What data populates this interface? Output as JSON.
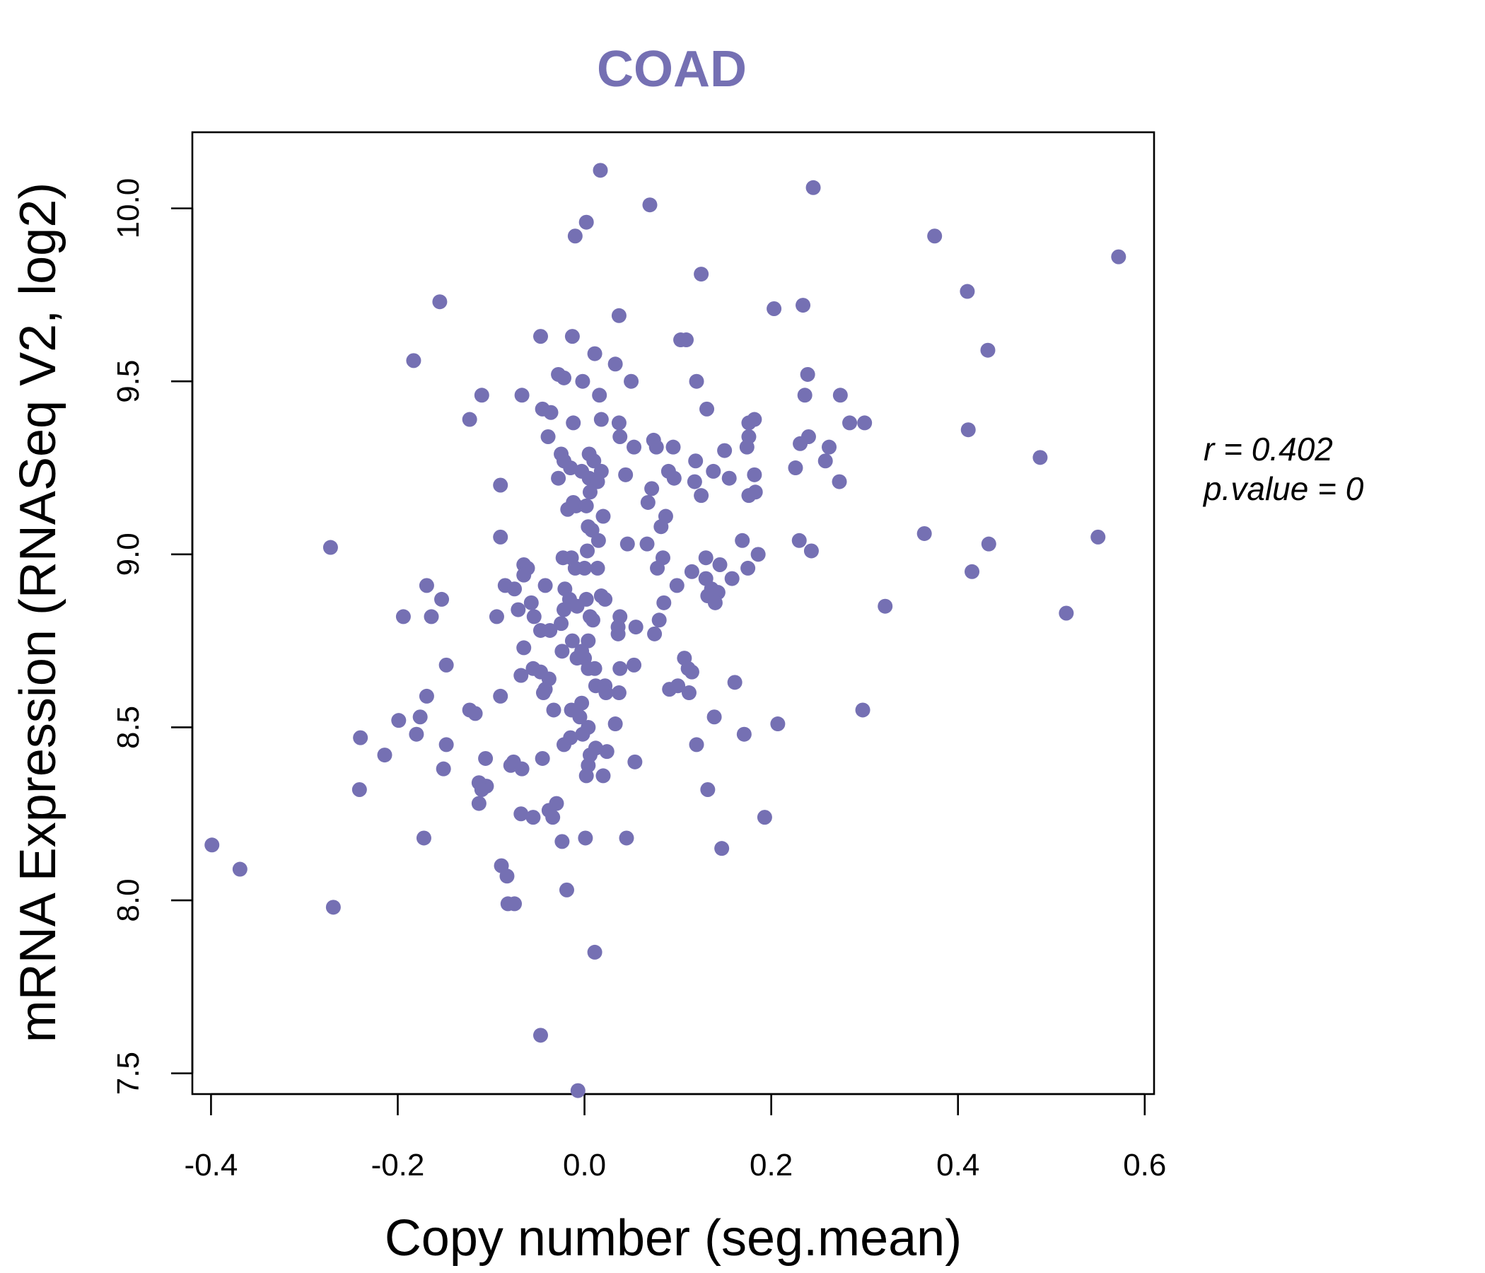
{
  "chart_data": {
    "type": "scatter",
    "title": "COAD",
    "xlabel": "Copy number (seg.mean)",
    "ylabel": "mRNA Expression (RNASeq V2, log2)",
    "xlim": [
      -0.42,
      0.61
    ],
    "ylim": [
      7.44,
      10.22
    ],
    "x_ticks": [
      -0.4,
      -0.2,
      0.0,
      0.2,
      0.4,
      0.6
    ],
    "x_tick_labels": [
      "-0.4",
      "-0.2",
      "0.0",
      "0.2",
      "0.4",
      "0.6"
    ],
    "y_ticks": [
      7.5,
      8.0,
      8.5,
      9.0,
      9.5,
      10.0
    ],
    "y_tick_labels": [
      "7.5",
      "8.0",
      "8.5",
      "9.0",
      "9.5",
      "10.0"
    ],
    "grid": false,
    "point_color": "#7570b3",
    "annotation": {
      "r_label": "r = 0.402",
      "p_label": "p.value = 0"
    },
    "points": [
      [
        0.017,
        10.11
      ],
      [
        0.07,
        10.01
      ],
      [
        0.245,
        10.06
      ],
      [
        0.002,
        9.96
      ],
      [
        -0.01,
        9.92
      ],
      [
        0.375,
        9.92
      ],
      [
        0.572,
        9.86
      ],
      [
        0.125,
        9.81
      ],
      [
        0.41,
        9.76
      ],
      [
        -0.155,
        9.73
      ],
      [
        0.234,
        9.72
      ],
      [
        0.203,
        9.71
      ],
      [
        0.037,
        9.69
      ],
      [
        -0.047,
        9.63
      ],
      [
        -0.013,
        9.63
      ],
      [
        0.103,
        9.62
      ],
      [
        0.109,
        9.62
      ],
      [
        0.432,
        9.59
      ],
      [
        -0.183,
        9.56
      ],
      [
        0.011,
        9.58
      ],
      [
        0.033,
        9.55
      ],
      [
        -0.028,
        9.52
      ],
      [
        -0.022,
        9.51
      ],
      [
        -0.002,
        9.5
      ],
      [
        0.05,
        9.5
      ],
      [
        0.12,
        9.5
      ],
      [
        0.239,
        9.52
      ],
      [
        -0.11,
        9.46
      ],
      [
        -0.067,
        9.46
      ],
      [
        0.016,
        9.46
      ],
      [
        0.236,
        9.46
      ],
      [
        0.274,
        9.46
      ],
      [
        -0.045,
        9.42
      ],
      [
        -0.036,
        9.41
      ],
      [
        0.131,
        9.42
      ],
      [
        -0.123,
        9.39
      ],
      [
        -0.012,
        9.38
      ],
      [
        0.018,
        9.39
      ],
      [
        0.037,
        9.38
      ],
      [
        0.176,
        9.38
      ],
      [
        0.182,
        9.39
      ],
      [
        0.284,
        9.38
      ],
      [
        0.3,
        9.38
      ],
      [
        0.411,
        9.36
      ],
      [
        -0.039,
        9.34
      ],
      [
        0.038,
        9.34
      ],
      [
        0.176,
        9.34
      ],
      [
        0.24,
        9.34
      ],
      [
        0.074,
        9.33
      ],
      [
        0.231,
        9.32
      ],
      [
        0.053,
        9.31
      ],
      [
        0.077,
        9.31
      ],
      [
        0.095,
        9.31
      ],
      [
        0.174,
        9.31
      ],
      [
        0.262,
        9.31
      ],
      [
        -0.025,
        9.29
      ],
      [
        0.005,
        9.29
      ],
      [
        0.15,
        9.3
      ],
      [
        -0.022,
        9.27
      ],
      [
        0.01,
        9.27
      ],
      [
        0.119,
        9.27
      ],
      [
        0.258,
        9.27
      ],
      [
        0.488,
        9.28
      ],
      [
        -0.015,
        9.25
      ],
      [
        -0.003,
        9.24
      ],
      [
        0.018,
        9.24
      ],
      [
        0.09,
        9.24
      ],
      [
        0.138,
        9.24
      ],
      [
        0.044,
        9.23
      ],
      [
        0.182,
        9.23
      ],
      [
        0.226,
        9.25
      ],
      [
        -0.09,
        9.2
      ],
      [
        -0.028,
        9.22
      ],
      [
        0.005,
        9.22
      ],
      [
        0.014,
        9.21
      ],
      [
        0.096,
        9.22
      ],
      [
        0.118,
        9.21
      ],
      [
        0.155,
        9.22
      ],
      [
        0.072,
        9.19
      ],
      [
        0.273,
        9.21
      ],
      [
        0.006,
        9.18
      ],
      [
        0.125,
        9.17
      ],
      [
        0.176,
        9.17
      ],
      [
        0.183,
        9.18
      ],
      [
        -0.012,
        9.15
      ],
      [
        0.068,
        9.15
      ],
      [
        -0.018,
        9.13
      ],
      [
        -0.009,
        9.14
      ],
      [
        0.002,
        9.14
      ],
      [
        0.02,
        9.11
      ],
      [
        0.087,
        9.11
      ],
      [
        0.004,
        9.08
      ],
      [
        0.008,
        9.07
      ],
      [
        0.082,
        9.08
      ],
      [
        -0.09,
        9.05
      ],
      [
        0.015,
        9.04
      ],
      [
        0.046,
        9.03
      ],
      [
        0.067,
        9.03
      ],
      [
        0.169,
        9.04
      ],
      [
        0.23,
        9.04
      ],
      [
        0.243,
        9.01
      ],
      [
        0.364,
        9.06
      ],
      [
        0.433,
        9.03
      ],
      [
        0.55,
        9.05
      ],
      [
        -0.272,
        9.02
      ],
      [
        -0.014,
        8.99
      ],
      [
        -0.023,
        8.99
      ],
      [
        0.003,
        9.01
      ],
      [
        0.084,
        8.99
      ],
      [
        0.13,
        8.99
      ],
      [
        0.186,
        9.0
      ],
      [
        -0.065,
        8.97
      ],
      [
        -0.061,
        8.96
      ],
      [
        -0.01,
        8.96
      ],
      [
        0.0,
        8.96
      ],
      [
        0.014,
        8.96
      ],
      [
        0.078,
        8.96
      ],
      [
        0.115,
        8.95
      ],
      [
        0.145,
        8.97
      ],
      [
        0.175,
        8.96
      ],
      [
        -0.065,
        8.94
      ],
      [
        0.13,
        8.93
      ],
      [
        0.158,
        8.93
      ],
      [
        0.415,
        8.95
      ],
      [
        -0.085,
        8.91
      ],
      [
        -0.075,
        8.9
      ],
      [
        -0.042,
        8.91
      ],
      [
        -0.021,
        8.9
      ],
      [
        -0.169,
        8.91
      ],
      [
        0.099,
        8.91
      ],
      [
        0.136,
        8.9
      ],
      [
        0.143,
        8.89
      ],
      [
        0.132,
        8.88
      ],
      [
        -0.153,
        8.87
      ],
      [
        -0.016,
        8.87
      ],
      [
        0.002,
        8.87
      ],
      [
        0.018,
        8.88
      ],
      [
        0.022,
        8.87
      ],
      [
        -0.057,
        8.86
      ],
      [
        -0.008,
        8.85
      ],
      [
        0.085,
        8.86
      ],
      [
        0.14,
        8.86
      ],
      [
        0.322,
        8.85
      ],
      [
        -0.071,
        8.84
      ],
      [
        -0.022,
        8.84
      ],
      [
        0.006,
        8.82
      ],
      [
        0.038,
        8.82
      ],
      [
        -0.194,
        8.82
      ],
      [
        -0.164,
        8.82
      ],
      [
        -0.094,
        8.82
      ],
      [
        -0.054,
        8.82
      ],
      [
        0.009,
        8.81
      ],
      [
        0.08,
        8.81
      ],
      [
        0.516,
        8.83
      ],
      [
        -0.025,
        8.8
      ],
      [
        0.036,
        8.79
      ],
      [
        0.055,
        8.79
      ],
      [
        -0.047,
        8.78
      ],
      [
        -0.037,
        8.78
      ],
      [
        0.036,
        8.77
      ],
      [
        0.075,
        8.77
      ],
      [
        -0.013,
        8.75
      ],
      [
        0.004,
        8.75
      ],
      [
        -0.065,
        8.73
      ],
      [
        -0.024,
        8.72
      ],
      [
        -0.003,
        8.72
      ],
      [
        0.107,
        8.7
      ],
      [
        -0.008,
        8.7
      ],
      [
        0.0,
        8.7
      ],
      [
        0.111,
        8.67
      ],
      [
        0.004,
        8.67
      ],
      [
        0.011,
        8.67
      ],
      [
        0.038,
        8.67
      ],
      [
        0.053,
        8.68
      ],
      [
        -0.148,
        8.68
      ],
      [
        -0.055,
        8.67
      ],
      [
        -0.068,
        8.65
      ],
      [
        -0.047,
        8.66
      ],
      [
        0.115,
        8.66
      ],
      [
        -0.038,
        8.64
      ],
      [
        0.012,
        8.62
      ],
      [
        0.022,
        8.62
      ],
      [
        0.1,
        8.62
      ],
      [
        0.161,
        8.63
      ],
      [
        -0.042,
        8.61
      ],
      [
        0.037,
        8.6
      ],
      [
        0.091,
        8.61
      ],
      [
        0.112,
        8.6
      ],
      [
        -0.169,
        8.59
      ],
      [
        -0.09,
        8.59
      ],
      [
        -0.044,
        8.6
      ],
      [
        0.023,
        8.6
      ],
      [
        -0.003,
        8.57
      ],
      [
        -0.033,
        8.55
      ],
      [
        -0.014,
        8.55
      ],
      [
        -0.123,
        8.55
      ],
      [
        -0.117,
        8.54
      ],
      [
        0.298,
        8.55
      ],
      [
        -0.005,
        8.53
      ],
      [
        0.139,
        8.53
      ],
      [
        -0.176,
        8.53
      ],
      [
        -0.199,
        8.52
      ],
      [
        0.033,
        8.51
      ],
      [
        0.207,
        8.51
      ],
      [
        0.004,
        8.5
      ],
      [
        -0.002,
        8.48
      ],
      [
        -0.015,
        8.47
      ],
      [
        -0.18,
        8.48
      ],
      [
        -0.24,
        8.47
      ],
      [
        0.171,
        8.48
      ],
      [
        -0.022,
        8.45
      ],
      [
        -0.148,
        8.45
      ],
      [
        0.12,
        8.45
      ],
      [
        0.012,
        8.44
      ],
      [
        0.006,
        8.42
      ],
      [
        0.024,
        8.43
      ],
      [
        -0.214,
        8.42
      ],
      [
        -0.106,
        8.41
      ],
      [
        -0.045,
        8.41
      ],
      [
        0.054,
        8.4
      ],
      [
        -0.076,
        8.4
      ],
      [
        0.004,
        8.39
      ],
      [
        -0.079,
        8.39
      ],
      [
        -0.067,
        8.38
      ],
      [
        -0.151,
        8.38
      ],
      [
        0.002,
        8.36
      ],
      [
        0.02,
        8.36
      ],
      [
        -0.113,
        8.34
      ],
      [
        -0.105,
        8.33
      ],
      [
        -0.11,
        8.32
      ],
      [
        -0.241,
        8.32
      ],
      [
        0.132,
        8.32
      ],
      [
        -0.03,
        8.28
      ],
      [
        -0.113,
        8.28
      ],
      [
        -0.038,
        8.26
      ],
      [
        -0.034,
        8.24
      ],
      [
        -0.068,
        8.25
      ],
      [
        -0.055,
        8.24
      ],
      [
        0.193,
        8.24
      ],
      [
        -0.172,
        8.18
      ],
      [
        0.045,
        8.18
      ],
      [
        0.001,
        8.18
      ],
      [
        -0.024,
        8.17
      ],
      [
        -0.399,
        8.16
      ],
      [
        0.147,
        8.15
      ],
      [
        -0.369,
        8.09
      ],
      [
        -0.089,
        8.1
      ],
      [
        -0.083,
        8.07
      ],
      [
        -0.082,
        7.99
      ],
      [
        -0.075,
        7.99
      ],
      [
        -0.269,
        7.98
      ],
      [
        -0.019,
        8.03
      ],
      [
        0.011,
        7.85
      ],
      [
        -0.047,
        7.61
      ],
      [
        -0.007,
        7.45
      ]
    ]
  }
}
